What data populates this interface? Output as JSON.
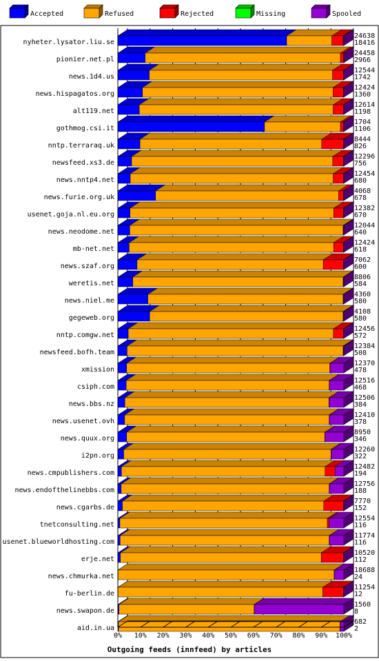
{
  "chart_data": {
    "type": "bar",
    "orientation": "horizontal",
    "stacked": true,
    "title": "",
    "xlabel": "Outgoing feeds (innfeed) by articles",
    "ylabel": "",
    "xlim": [
      0,
      100
    ],
    "x_ticks": [
      "0%",
      "10%",
      "20%",
      "30%",
      "40%",
      "50%",
      "60%",
      "70%",
      "80%",
      "90%",
      "100%"
    ],
    "grid": true,
    "legend_position": "top",
    "series": [
      {
        "name": "Accepted",
        "color": "#0000ff"
      },
      {
        "name": "Refused",
        "color": "#ffa500"
      },
      {
        "name": "Rejected",
        "color": "#ff0000"
      },
      {
        "name": "Missing",
        "color": "#00ff00"
      },
      {
        "name": "Spooled",
        "color": "#9400d3"
      }
    ],
    "rows": [
      {
        "label": "nyheter.lysator.liu.se",
        "total": "24638",
        "accepted_count": "18416",
        "pct": [
          74.7,
          20.0,
          5.0,
          0,
          0.3
        ]
      },
      {
        "label": "pionier.net.pl",
        "total": "24458",
        "accepted_count": "2966",
        "pct": [
          12.1,
          86.4,
          1.4,
          0,
          0.1
        ]
      },
      {
        "label": "news.1d4.us",
        "total": "12544",
        "accepted_count": "1742",
        "pct": [
          13.9,
          81.1,
          4.8,
          0,
          0.2
        ]
      },
      {
        "label": "news.hispagatos.org",
        "total": "12424",
        "accepted_count": "1360",
        "pct": [
          10.9,
          84.3,
          4.6,
          0,
          0.2
        ]
      },
      {
        "label": "alt119.net",
        "total": "12614",
        "accepted_count": "1198",
        "pct": [
          9.5,
          85.8,
          4.5,
          0,
          0.2
        ]
      },
      {
        "label": "gothmog.csi.it",
        "total": "1704",
        "accepted_count": "1106",
        "pct": [
          64.9,
          33.6,
          1.3,
          0,
          0.2
        ]
      },
      {
        "label": "nntp.terraraq.uk",
        "total": "8444",
        "accepted_count": "826",
        "pct": [
          9.8,
          80.4,
          9.6,
          0,
          0.2
        ]
      },
      {
        "label": "newsfeed.xs3.de",
        "total": "12296",
        "accepted_count": "756",
        "pct": [
          6.1,
          89.0,
          4.7,
          0,
          0.2
        ]
      },
      {
        "label": "news.nntp4.net",
        "total": "12454",
        "accepted_count": "680",
        "pct": [
          5.5,
          89.8,
          4.5,
          0,
          0.2
        ]
      },
      {
        "label": "news.furie.org.uk",
        "total": "4068",
        "accepted_count": "678",
        "pct": [
          16.7,
          81.0,
          2.1,
          0,
          0.2
        ]
      },
      {
        "label": "usenet.goja.nl.eu.org",
        "total": "12382",
        "accepted_count": "670",
        "pct": [
          5.4,
          90.1,
          4.3,
          0,
          0.2
        ]
      },
      {
        "label": "news.neodome.net",
        "total": "12044",
        "accepted_count": "640",
        "pct": [
          5.3,
          94.4,
          0.1,
          0,
          0.2
        ]
      },
      {
        "label": "mb-net.net",
        "total": "12424",
        "accepted_count": "618",
        "pct": [
          5.0,
          90.5,
          4.3,
          0,
          0.2
        ]
      },
      {
        "label": "news.szaf.org",
        "total": "7062",
        "accepted_count": "600",
        "pct": [
          8.5,
          82.4,
          8.9,
          0,
          0.2
        ]
      },
      {
        "label": "weretis.net",
        "total": "8806",
        "accepted_count": "584",
        "pct": [
          6.6,
          93.1,
          0.1,
          0,
          0.2
        ]
      },
      {
        "label": "news.niel.me",
        "total": "4360",
        "accepted_count": "580",
        "pct": [
          13.3,
          86.4,
          0.1,
          0,
          0.2
        ]
      },
      {
        "label": "gegeweb.org",
        "total": "4108",
        "accepted_count": "580",
        "pct": [
          14.1,
          85.6,
          0.1,
          0,
          0.2
        ]
      },
      {
        "label": "nntp.comgw.net",
        "total": "12456",
        "accepted_count": "572",
        "pct": [
          4.6,
          90.8,
          4.4,
          0,
          0.2
        ]
      },
      {
        "label": "newsfeed.bofh.team",
        "total": "12384",
        "accepted_count": "508",
        "pct": [
          4.1,
          95.6,
          0.1,
          0,
          0.2
        ]
      },
      {
        "label": "xmission",
        "total": "12370",
        "accepted_count": "478",
        "pct": [
          3.9,
          89.9,
          0.1,
          0,
          6.1
        ]
      },
      {
        "label": "csiph.com",
        "total": "12516",
        "accepted_count": "468",
        "pct": [
          3.7,
          89.8,
          0.1,
          0,
          6.4
        ]
      },
      {
        "label": "news.bbs.nz",
        "total": "12506",
        "accepted_count": "384",
        "pct": [
          3.1,
          90.3,
          0.1,
          0,
          6.5
        ]
      },
      {
        "label": "news.usenet.ovh",
        "total": "12410",
        "accepted_count": "378",
        "pct": [
          3.0,
          90.5,
          0.1,
          0,
          6.4
        ]
      },
      {
        "label": "news.quux.org",
        "total": "8950",
        "accepted_count": "346",
        "pct": [
          3.9,
          87.7,
          0.1,
          0,
          8.3
        ]
      },
      {
        "label": "i2pn.org",
        "total": "12260",
        "accepted_count": "322",
        "pct": [
          2.6,
          91.7,
          0.1,
          0,
          5.6
        ]
      },
      {
        "label": "news.cmpublishers.com",
        "total": "12482",
        "accepted_count": "194",
        "pct": [
          1.6,
          90.1,
          4.4,
          0,
          3.9
        ]
      },
      {
        "label": "news.endofthelinebbs.com",
        "total": "12756",
        "accepted_count": "188",
        "pct": [
          1.5,
          92.0,
          0.1,
          0,
          6.4
        ]
      },
      {
        "label": "news.cgarbs.de",
        "total": "7770",
        "accepted_count": "152",
        "pct": [
          2.0,
          89.1,
          8.7,
          0,
          0.2
        ]
      },
      {
        "label": "tnetconsulting.net",
        "total": "12554",
        "accepted_count": "116",
        "pct": [
          0.9,
          91.8,
          0.8,
          0,
          6.5
        ]
      },
      {
        "label": "usenet.blueworldhosting.com",
        "total": "11774",
        "accepted_count": "116",
        "pct": [
          1.0,
          92.5,
          0.1,
          0,
          6.4
        ]
      },
      {
        "label": "erje.net",
        "total": "10520",
        "accepted_count": "112",
        "pct": [
          1.1,
          88.9,
          9.8,
          0,
          0.2
        ]
      },
      {
        "label": "news.chmurka.net",
        "total": "18688",
        "accepted_count": "24",
        "pct": [
          0.1,
          95.6,
          0.1,
          0,
          4.2
        ]
      },
      {
        "label": "fu-berlin.de",
        "total": "11254",
        "accepted_count": "12",
        "pct": [
          0.1,
          90.6,
          9.1,
          0,
          0.2
        ]
      },
      {
        "label": "news.swapon.de",
        "total": "1560",
        "accepted_count": "8",
        "pct": [
          0.5,
          59.8,
          0.1,
          0,
          39.6
        ]
      },
      {
        "label": "aid.in.ua",
        "total": "682",
        "accepted_count": "2",
        "pct": [
          0.3,
          98.0,
          0.1,
          0,
          1.6
        ]
      }
    ]
  }
}
